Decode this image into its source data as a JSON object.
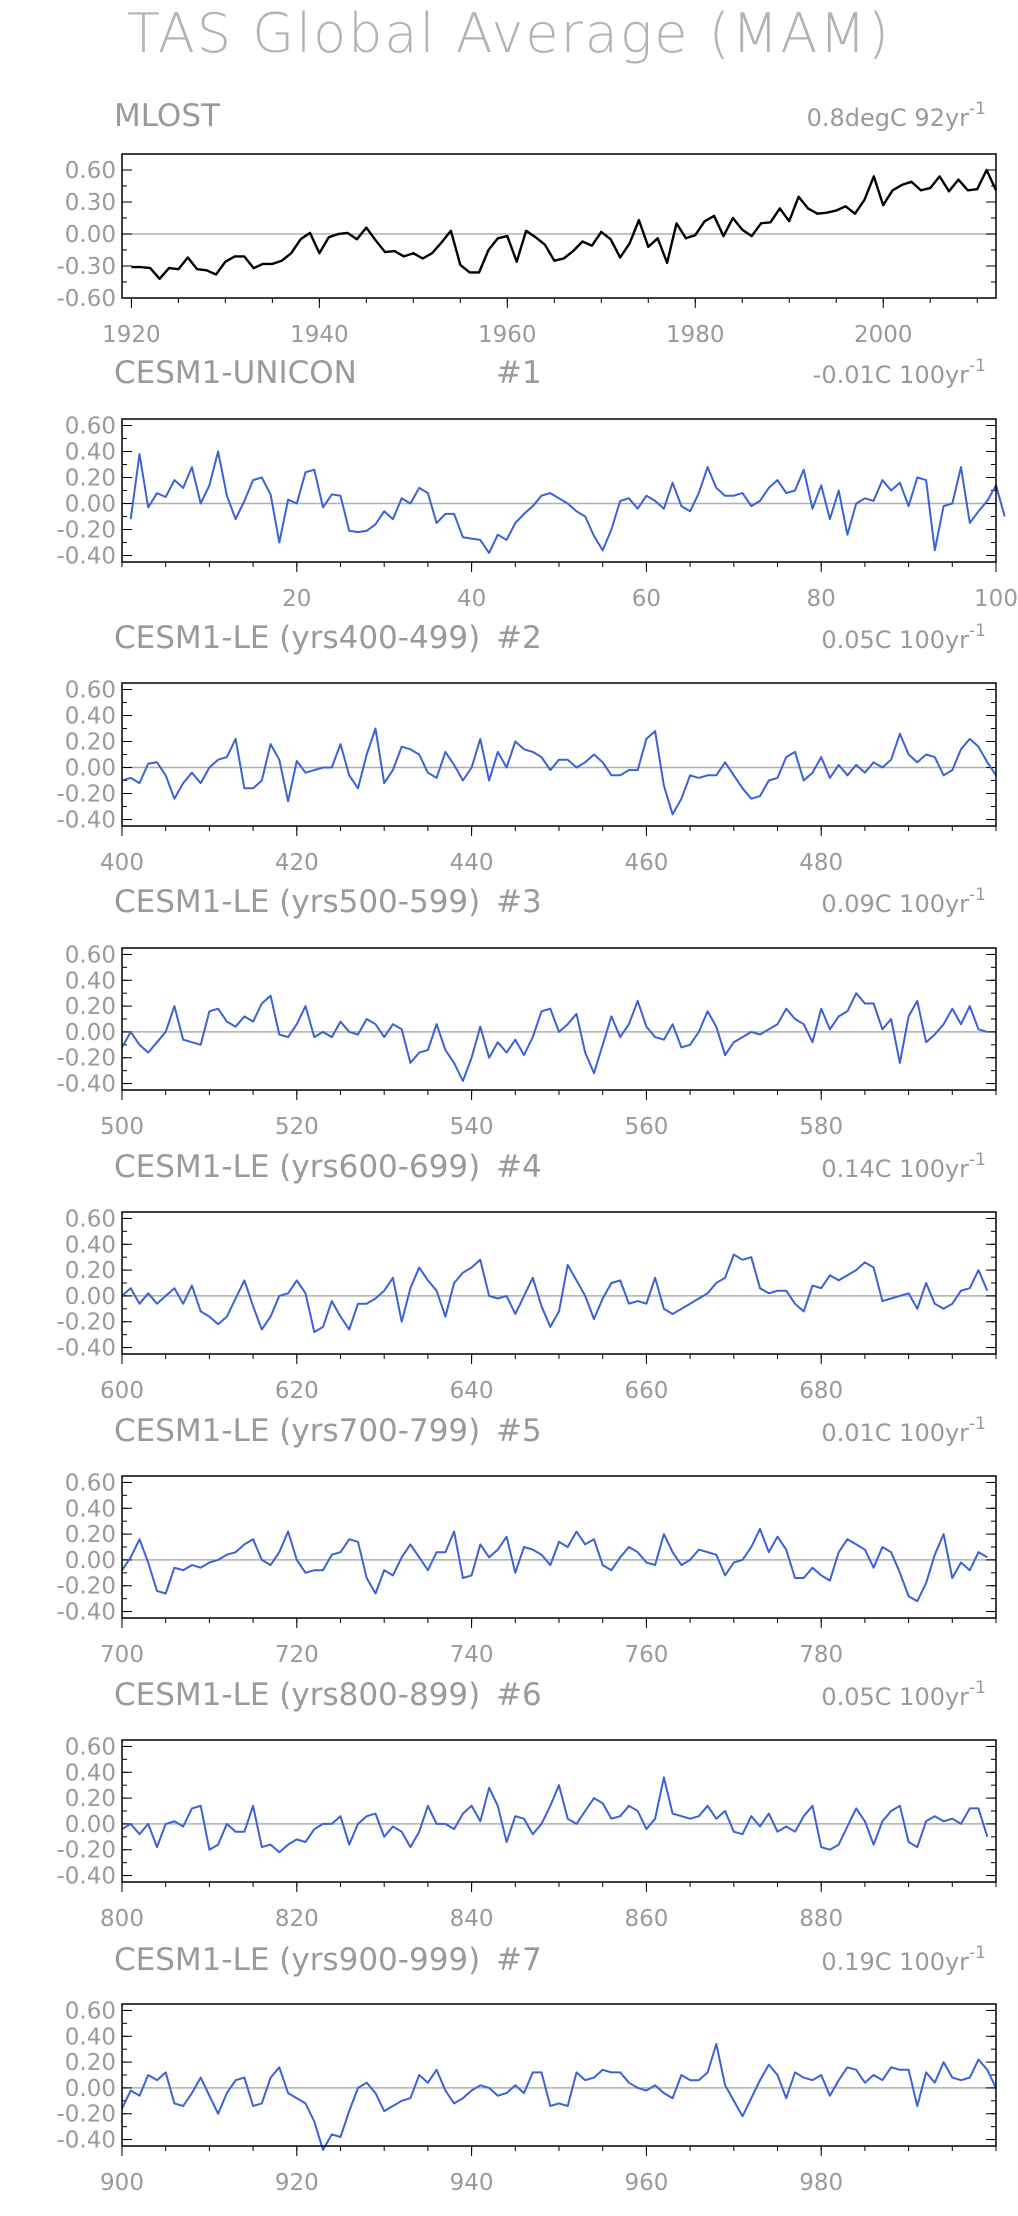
{
  "title": "TAS Global Average (MAM)",
  "colors": {
    "obs_line": "#000000",
    "model_line": "#3b62d6",
    "zero_line": "#b0b0b0",
    "text": "#9a9a9a",
    "frame": "#000000"
  },
  "chart_data": [
    {
      "type": "line",
      "title": "MLOST",
      "run_label": "",
      "trend_value": "0.8degC 92yr",
      "trend_exp": "-1",
      "ylim": [
        -0.6,
        0.75
      ],
      "yticks": [
        "0.60",
        "0.30",
        "0.00",
        "-0.30",
        "-0.60"
      ],
      "ytick_values": [
        0.6,
        0.3,
        0.0,
        -0.3,
        -0.6
      ],
      "xlim": [
        1919,
        2012
      ],
      "xticks": [
        1920,
        1940,
        1960,
        1980,
        2000
      ],
      "x_start": 1920,
      "color": "#000000",
      "values": [
        -0.31,
        -0.31,
        -0.32,
        -0.42,
        -0.32,
        -0.33,
        -0.22,
        -0.33,
        -0.34,
        -0.38,
        -0.26,
        -0.21,
        -0.21,
        -0.32,
        -0.28,
        -0.28,
        -0.25,
        -0.18,
        -0.05,
        0.01,
        -0.18,
        -0.03,
        0.0,
        0.01,
        -0.05,
        0.06,
        -0.06,
        -0.17,
        -0.16,
        -0.21,
        -0.18,
        -0.23,
        -0.18,
        -0.08,
        0.03,
        -0.29,
        -0.36,
        -0.36,
        -0.15,
        -0.04,
        -0.02,
        -0.26,
        0.03,
        -0.03,
        -0.1,
        -0.25,
        -0.23,
        -0.16,
        -0.07,
        -0.11,
        0.02,
        -0.05,
        -0.22,
        -0.09,
        0.13,
        -0.12,
        -0.04,
        -0.27,
        0.1,
        -0.04,
        -0.01,
        0.12,
        0.17,
        -0.02,
        0.15,
        0.04,
        -0.02,
        0.1,
        0.11,
        0.24,
        0.12,
        0.35,
        0.24,
        0.19,
        0.2,
        0.22,
        0.26,
        0.19,
        0.32,
        0.54,
        0.27,
        0.41,
        0.46,
        0.49,
        0.41,
        0.43,
        0.54,
        0.4,
        0.51,
        0.41,
        0.42,
        0.6,
        0.41
      ]
    },
    {
      "type": "line",
      "title": "CESM1-UNICON",
      "run_label": "#1",
      "trend_value": "-0.01C 100yr",
      "trend_exp": "-1",
      "ylim": [
        -0.45,
        0.65
      ],
      "yticks": [
        "0.60",
        "0.40",
        "0.20",
        "0.00",
        "-0.20",
        "-0.40"
      ],
      "ytick_values": [
        0.6,
        0.4,
        0.2,
        0.0,
        -0.2,
        -0.4
      ],
      "xlim": [
        0,
        100
      ],
      "xticks": [
        20,
        40,
        60,
        80,
        100
      ],
      "x_start": 1,
      "color": "#3b62d6",
      "values": [
        -0.12,
        0.38,
        -0.03,
        0.08,
        0.05,
        0.18,
        0.12,
        0.28,
        0.0,
        0.14,
        0.4,
        0.06,
        -0.12,
        0.02,
        0.18,
        0.2,
        0.07,
        -0.3,
        0.03,
        0.0,
        0.24,
        0.26,
        -0.03,
        0.07,
        0.06,
        -0.21,
        -0.22,
        -0.21,
        -0.16,
        -0.06,
        -0.12,
        0.04,
        0.0,
        0.12,
        0.08,
        -0.15,
        -0.08,
        -0.08,
        -0.26,
        -0.27,
        -0.28,
        -0.38,
        -0.24,
        -0.28,
        -0.15,
        -0.08,
        -0.02,
        0.06,
        0.08,
        0.04,
        0.0,
        -0.06,
        -0.1,
        -0.25,
        -0.36,
        -0.2,
        0.02,
        0.04,
        -0.04,
        0.06,
        0.02,
        -0.04,
        0.16,
        -0.02,
        -0.06,
        0.08,
        0.28,
        0.12,
        0.06,
        0.06,
        0.08,
        -0.02,
        0.02,
        0.12,
        0.18,
        0.08,
        0.1,
        0.26,
        -0.04,
        0.14,
        -0.12,
        0.1,
        -0.24,
        0.0,
        0.04,
        0.02,
        0.18,
        0.1,
        0.16,
        -0.02,
        0.2,
        0.18,
        -0.36,
        -0.02,
        0.0,
        0.28,
        -0.15,
        -0.06,
        0.02,
        0.14,
        -0.1
      ]
    },
    {
      "type": "line",
      "title": "CESM1-LE (yrs400-499)",
      "run_label": "#2",
      "trend_value": "0.05C 100yr",
      "trend_exp": "-1",
      "ylim": [
        -0.45,
        0.65
      ],
      "yticks": [
        "0.60",
        "0.40",
        "0.20",
        "0.00",
        "-0.20",
        "-0.40"
      ],
      "ytick_values": [
        0.6,
        0.4,
        0.2,
        0.0,
        -0.2,
        -0.4
      ],
      "xlim": [
        400,
        500
      ],
      "xticks": [
        400,
        420,
        440,
        460,
        480
      ],
      "x_start": 400,
      "color": "#3b62d6",
      "values": [
        -0.1,
        -0.08,
        -0.12,
        0.03,
        0.04,
        -0.06,
        -0.24,
        -0.12,
        -0.04,
        -0.12,
        0.0,
        0.06,
        0.08,
        0.22,
        -0.16,
        -0.16,
        -0.1,
        0.18,
        0.06,
        -0.26,
        0.05,
        -0.04,
        -0.02,
        0.0,
        0.0,
        0.18,
        -0.06,
        -0.16,
        0.1,
        0.3,
        -0.12,
        -0.02,
        0.16,
        0.14,
        0.1,
        -0.04,
        -0.08,
        0.12,
        0.02,
        -0.1,
        0.0,
        0.22,
        -0.1,
        0.12,
        0.0,
        0.2,
        0.14,
        0.12,
        0.08,
        -0.02,
        0.06,
        0.06,
        0.0,
        0.04,
        0.1,
        0.04,
        -0.06,
        -0.06,
        -0.02,
        -0.02,
        0.22,
        0.28,
        -0.14,
        -0.36,
        -0.24,
        -0.06,
        -0.08,
        -0.06,
        -0.06,
        0.04,
        -0.06,
        -0.16,
        -0.24,
        -0.22,
        -0.1,
        -0.08,
        0.08,
        0.12,
        -0.1,
        -0.04,
        0.08,
        -0.08,
        0.02,
        -0.06,
        0.02,
        -0.04,
        0.04,
        0.0,
        0.06,
        0.26,
        0.1,
        0.04,
        0.1,
        0.08,
        -0.06,
        -0.02,
        0.14,
        0.22,
        0.16,
        0.04,
        -0.06
      ]
    },
    {
      "type": "line",
      "title": "CESM1-LE (yrs500-599)",
      "run_label": "#3",
      "trend_value": "0.09C 100yr",
      "trend_exp": "-1",
      "ylim": [
        -0.45,
        0.65
      ],
      "yticks": [
        "0.60",
        "0.40",
        "0.20",
        "0.00",
        "-0.20",
        "-0.40"
      ],
      "ytick_values": [
        0.6,
        0.4,
        0.2,
        0.0,
        -0.2,
        -0.4
      ],
      "xlim": [
        500,
        600
      ],
      "xticks": [
        500,
        520,
        540,
        560,
        580
      ],
      "x_start": 500,
      "color": "#3b62d6",
      "values": [
        -0.12,
        0.0,
        -0.1,
        -0.16,
        -0.08,
        0.0,
        0.2,
        -0.06,
        -0.08,
        -0.1,
        0.16,
        0.18,
        0.08,
        0.04,
        0.12,
        0.08,
        0.22,
        0.28,
        -0.02,
        -0.04,
        0.06,
        0.2,
        -0.04,
        0.0,
        -0.04,
        0.08,
        0.0,
        -0.02,
        0.1,
        0.06,
        -0.04,
        0.06,
        0.02,
        -0.24,
        -0.16,
        -0.14,
        0.06,
        -0.14,
        -0.24,
        -0.38,
        -0.2,
        0.04,
        -0.2,
        -0.08,
        -0.16,
        -0.06,
        -0.18,
        -0.04,
        0.16,
        0.18,
        0.0,
        0.06,
        0.14,
        -0.16,
        -0.32,
        -0.1,
        0.12,
        -0.04,
        0.06,
        0.24,
        0.04,
        -0.04,
        -0.06,
        0.06,
        -0.12,
        -0.1,
        0.0,
        0.16,
        0.04,
        -0.18,
        -0.08,
        -0.04,
        0.0,
        -0.02,
        0.02,
        0.06,
        0.18,
        0.1,
        0.06,
        -0.08,
        0.18,
        0.02,
        0.12,
        0.16,
        0.3,
        0.22,
        0.22,
        0.02,
        0.1,
        -0.24,
        0.12,
        0.24,
        -0.08,
        -0.02,
        0.06,
        0.18,
        0.06,
        0.2,
        0.02,
        0.0
      ]
    },
    {
      "type": "line",
      "title": "CESM1-LE (yrs600-699)",
      "run_label": "#4",
      "trend_value": "0.14C 100yr",
      "trend_exp": "-1",
      "ylim": [
        -0.45,
        0.65
      ],
      "yticks": [
        "0.60",
        "0.40",
        "0.20",
        "0.00",
        "-0.20",
        "-0.40"
      ],
      "ytick_values": [
        0.6,
        0.4,
        0.2,
        0.0,
        -0.2,
        -0.4
      ],
      "xlim": [
        600,
        700
      ],
      "xticks": [
        600,
        620,
        640,
        660,
        680
      ],
      "x_start": 600,
      "color": "#3b62d6",
      "values": [
        0.0,
        0.06,
        -0.06,
        0.02,
        -0.06,
        0.0,
        0.06,
        -0.06,
        0.08,
        -0.12,
        -0.16,
        -0.22,
        -0.16,
        -0.02,
        0.12,
        -0.08,
        -0.26,
        -0.16,
        0.0,
        0.02,
        0.12,
        0.02,
        -0.28,
        -0.24,
        -0.04,
        -0.16,
        -0.26,
        -0.06,
        -0.06,
        -0.02,
        0.04,
        0.14,
        -0.2,
        0.06,
        0.22,
        0.12,
        0.04,
        -0.16,
        0.1,
        0.18,
        0.22,
        0.28,
        0.0,
        -0.02,
        0.0,
        -0.14,
        0.0,
        0.14,
        -0.08,
        -0.24,
        -0.12,
        0.24,
        0.12,
        0.0,
        -0.18,
        -0.02,
        0.1,
        0.12,
        -0.06,
        -0.04,
        -0.06,
        0.14,
        -0.1,
        -0.14,
        -0.1,
        -0.06,
        -0.02,
        0.02,
        0.1,
        0.14,
        0.32,
        0.28,
        0.3,
        0.06,
        0.02,
        0.04,
        0.04,
        -0.06,
        -0.12,
        0.08,
        0.06,
        0.16,
        0.12,
        0.16,
        0.2,
        0.26,
        0.22,
        -0.04,
        -0.02,
        0.0,
        0.02,
        -0.1,
        0.1,
        -0.06,
        -0.1,
        -0.06,
        0.04,
        0.06,
        0.2,
        0.04
      ]
    },
    {
      "type": "line",
      "title": "CESM1-LE (yrs700-799)",
      "run_label": "#5",
      "trend_value": "0.01C 100yr",
      "trend_exp": "-1",
      "ylim": [
        -0.45,
        0.65
      ],
      "yticks": [
        "0.60",
        "0.40",
        "0.20",
        "0.00",
        "-0.20",
        "-0.40"
      ],
      "ytick_values": [
        0.6,
        0.4,
        0.2,
        0.0,
        -0.2,
        -0.4
      ],
      "xlim": [
        700,
        800
      ],
      "xticks": [
        700,
        720,
        740,
        760,
        780
      ],
      "x_start": 700,
      "color": "#3b62d6",
      "values": [
        -0.08,
        0.02,
        0.16,
        -0.02,
        -0.24,
        -0.26,
        -0.06,
        -0.08,
        -0.04,
        -0.06,
        -0.02,
        0.0,
        0.04,
        0.06,
        0.12,
        0.16,
        0.0,
        -0.04,
        0.06,
        0.22,
        0.0,
        -0.1,
        -0.08,
        -0.08,
        0.04,
        0.06,
        0.16,
        0.14,
        -0.14,
        -0.26,
        -0.08,
        -0.12,
        0.02,
        0.12,
        0.02,
        -0.08,
        0.06,
        0.06,
        0.22,
        -0.14,
        -0.12,
        0.12,
        0.02,
        0.08,
        0.18,
        -0.1,
        0.1,
        0.08,
        0.04,
        -0.04,
        0.14,
        0.1,
        0.22,
        0.12,
        0.16,
        -0.04,
        -0.08,
        0.02,
        0.1,
        0.06,
        -0.02,
        -0.04,
        0.2,
        0.06,
        -0.04,
        0.0,
        0.08,
        0.06,
        0.04,
        -0.12,
        -0.02,
        0.0,
        0.1,
        0.24,
        0.06,
        0.18,
        0.08,
        -0.14,
        -0.14,
        -0.06,
        -0.12,
        -0.16,
        0.06,
        0.16,
        0.12,
        0.08,
        -0.06,
        0.1,
        0.06,
        -0.1,
        -0.28,
        -0.32,
        -0.18,
        0.04,
        0.2,
        -0.14,
        -0.02,
        -0.08,
        0.06,
        0.02
      ]
    },
    {
      "type": "line",
      "title": "CESM1-LE (yrs800-899)",
      "run_label": "#6",
      "trend_value": "0.05C 100yr",
      "trend_exp": "-1",
      "ylim": [
        -0.45,
        0.65
      ],
      "yticks": [
        "0.60",
        "0.40",
        "0.20",
        "0.00",
        "-0.20",
        "-0.40"
      ],
      "ytick_values": [
        0.6,
        0.4,
        0.2,
        0.0,
        -0.2,
        -0.4
      ],
      "xlim": [
        800,
        900
      ],
      "xticks": [
        800,
        820,
        840,
        860,
        880
      ],
      "x_start": 800,
      "color": "#3b62d6",
      "values": [
        -0.04,
        0.0,
        -0.08,
        0.0,
        -0.18,
        0.0,
        0.02,
        -0.02,
        0.12,
        0.14,
        -0.2,
        -0.16,
        0.0,
        -0.06,
        -0.06,
        0.14,
        -0.18,
        -0.16,
        -0.22,
        -0.16,
        -0.12,
        -0.14,
        -0.04,
        0.0,
        0.0,
        0.06,
        -0.16,
        0.0,
        0.06,
        0.08,
        -0.1,
        -0.02,
        -0.06,
        -0.18,
        -0.06,
        0.14,
        0.0,
        0.0,
        -0.04,
        0.08,
        0.14,
        0.02,
        0.28,
        0.14,
        -0.14,
        0.06,
        0.04,
        -0.08,
        0.0,
        0.14,
        0.3,
        0.04,
        0.0,
        0.1,
        0.2,
        0.16,
        0.04,
        0.06,
        0.14,
        0.1,
        -0.04,
        0.04,
        0.36,
        0.08,
        0.06,
        0.04,
        0.06,
        0.14,
        0.04,
        0.1,
        -0.06,
        -0.08,
        0.06,
        -0.02,
        0.08,
        -0.06,
        -0.02,
        -0.06,
        0.06,
        0.14,
        -0.18,
        -0.2,
        -0.16,
        -0.02,
        0.12,
        0.02,
        -0.16,
        0.02,
        0.1,
        0.14,
        -0.14,
        -0.18,
        0.02,
        0.06,
        0.02,
        0.04,
        0.0,
        0.12,
        0.12,
        -0.1
      ]
    },
    {
      "type": "line",
      "title": "CESM1-LE (yrs900-999)",
      "run_label": "#7",
      "trend_value": "0.19C 100yr",
      "trend_exp": "-1",
      "ylim": [
        -0.45,
        0.65
      ],
      "yticks": [
        "0.60",
        "0.40",
        "0.20",
        "0.00",
        "-0.20",
        "-0.40"
      ],
      "ytick_values": [
        0.6,
        0.4,
        0.2,
        0.0,
        -0.2,
        -0.4
      ],
      "xlim": [
        900,
        1000
      ],
      "xticks": [
        900,
        920,
        940,
        960,
        980
      ],
      "x_start": 900,
      "color": "#3b62d6",
      "values": [
        -0.16,
        -0.02,
        -0.06,
        0.1,
        0.06,
        0.12,
        -0.12,
        -0.14,
        -0.04,
        0.08,
        -0.06,
        -0.2,
        -0.04,
        0.06,
        0.08,
        -0.14,
        -0.12,
        0.08,
        0.16,
        -0.04,
        -0.08,
        -0.12,
        -0.26,
        -0.48,
        -0.36,
        -0.38,
        -0.18,
        0.0,
        0.04,
        -0.04,
        -0.18,
        -0.14,
        -0.1,
        -0.08,
        0.1,
        0.04,
        0.14,
        -0.02,
        -0.12,
        -0.08,
        -0.02,
        0.02,
        0.0,
        -0.06,
        -0.04,
        0.02,
        -0.04,
        0.12,
        0.12,
        -0.14,
        -0.12,
        -0.14,
        0.12,
        0.06,
        0.08,
        0.14,
        0.12,
        0.12,
        0.04,
        0.0,
        -0.02,
        0.02,
        -0.04,
        -0.08,
        0.1,
        0.06,
        0.06,
        0.12,
        0.34,
        0.02,
        -0.1,
        -0.22,
        -0.08,
        0.06,
        0.18,
        0.1,
        -0.08,
        0.12,
        0.08,
        0.06,
        0.1,
        -0.06,
        0.06,
        0.16,
        0.14,
        0.04,
        0.1,
        0.06,
        0.16,
        0.14,
        0.14,
        -0.14,
        0.12,
        0.04,
        0.2,
        0.08,
        0.06,
        0.08,
        0.22,
        0.14,
        0.0
      ]
    }
  ]
}
